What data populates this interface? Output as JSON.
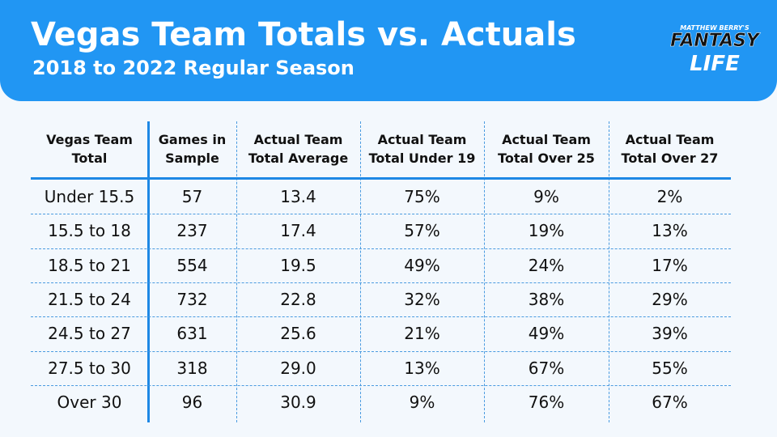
{
  "header": {
    "title": "Vegas Team Totals vs. Actuals",
    "subtitle": "2018 to 2022 Regular Season"
  },
  "logo": {
    "line1": "MATTHEW BERRY'S",
    "line2": "FANTASY",
    "line3": "LIFE"
  },
  "table": {
    "columns": [
      [
        "Vegas Team",
        "Total"
      ],
      [
        "Games in",
        "Sample"
      ],
      [
        "Actual Team",
        "Total Average"
      ],
      [
        "Actual Team",
        "Total Under 19"
      ],
      [
        "Actual Team",
        "Total Over 25"
      ],
      [
        "Actual Team",
        "Total Over 27"
      ]
    ],
    "rows": [
      [
        "Under 15.5",
        "57",
        "13.4",
        "75%",
        "9%",
        "2%"
      ],
      [
        "15.5 to 18",
        "237",
        "17.4",
        "57%",
        "19%",
        "13%"
      ],
      [
        "18.5 to 21",
        "554",
        "19.5",
        "49%",
        "24%",
        "17%"
      ],
      [
        "21.5 to 24",
        "732",
        "22.8",
        "32%",
        "38%",
        "29%"
      ],
      [
        "24.5 to 27",
        "631",
        "25.6",
        "21%",
        "49%",
        "39%"
      ],
      [
        "27.5 to 30",
        "318",
        "29.0",
        "13%",
        "67%",
        "55%"
      ],
      [
        "Over 30",
        "96",
        "30.9",
        "9%",
        "76%",
        "67%"
      ]
    ]
  }
}
